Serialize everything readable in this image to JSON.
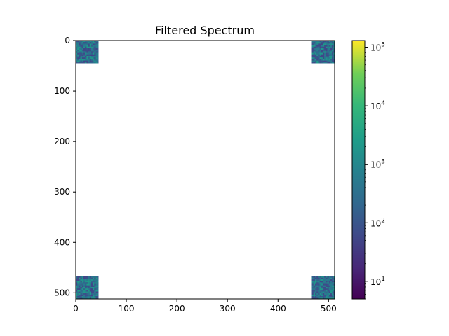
{
  "chart_data": {
    "type": "heatmap",
    "title": "Filtered Spectrum",
    "xlabel": "",
    "ylabel": "",
    "image_shape": [
      512,
      512
    ],
    "xlim": [
      0,
      512
    ],
    "ylim": [
      512,
      0
    ],
    "x_ticks": [
      0,
      100,
      200,
      300,
      400,
      500
    ],
    "y_ticks": [
      0,
      100,
      200,
      300,
      400,
      500
    ],
    "x_tick_labels": [
      "0",
      "100",
      "200",
      "300",
      "400",
      "500"
    ],
    "y_tick_labels": [
      "0",
      "100",
      "200",
      "300",
      "400",
      "500"
    ],
    "mask_background": "#ffffff",
    "colormap": "viridis",
    "colorbar": {
      "scale": "log",
      "range": [
        5,
        130000
      ],
      "major_ticks": [
        {
          "value": 10,
          "base": "10",
          "exp": "1"
        },
        {
          "value": 100,
          "base": "10",
          "exp": "2"
        },
        {
          "value": 1000,
          "base": "10",
          "exp": "3"
        },
        {
          "value": 10000,
          "base": "10",
          "exp": "4"
        },
        {
          "value": 100000,
          "base": "10",
          "exp": "5"
        }
      ]
    },
    "corner_regions": [
      {
        "name": "top-left",
        "x": [
          0,
          45
        ],
        "y": [
          0,
          45
        ]
      },
      {
        "name": "top-right",
        "x": [
          467,
          512
        ],
        "y": [
          0,
          45
        ]
      },
      {
        "name": "bottom-left",
        "x": [
          0,
          45
        ],
        "y": [
          467,
          512
        ]
      },
      {
        "name": "bottom-right",
        "x": [
          467,
          512
        ],
        "y": [
          467,
          512
        ]
      }
    ]
  }
}
